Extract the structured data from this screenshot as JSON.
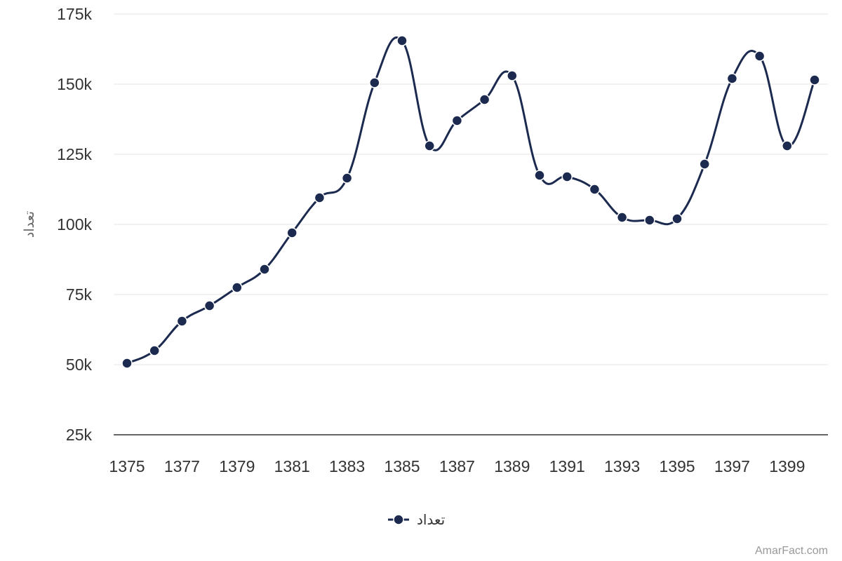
{
  "chart_data": {
    "type": "line",
    "title": "",
    "xlabel": "",
    "ylabel": "تعداد",
    "x": [
      1375,
      1376,
      1377,
      1378,
      1379,
      1380,
      1381,
      1382,
      1383,
      1384,
      1385,
      1386,
      1387,
      1388,
      1389,
      1390,
      1391,
      1392,
      1393,
      1394,
      1395,
      1396,
      1397,
      1398,
      1399,
      1400
    ],
    "x_tick_labels": [
      "1375",
      "1377",
      "1379",
      "1381",
      "1383",
      "1385",
      "1387",
      "1389",
      "1391",
      "1393",
      "1395",
      "1397",
      "1399"
    ],
    "y_tick_values": [
      25000,
      50000,
      75000,
      100000,
      125000,
      150000,
      175000
    ],
    "y_tick_labels": [
      "25k",
      "50k",
      "75k",
      "100k",
      "125k",
      "150k",
      "175k"
    ],
    "ylim": [
      25000,
      175000
    ],
    "grid": true,
    "legend_position": "bottom-center",
    "series": [
      {
        "name": "تعداد",
        "color": "#1b2a4e",
        "values": [
          50500,
          55000,
          65500,
          71000,
          77500,
          84000,
          97000,
          109500,
          116500,
          150500,
          165500,
          128000,
          137000,
          144500,
          153000,
          117500,
          117000,
          112500,
          102500,
          101500,
          102000,
          121500,
          152000,
          160000,
          128000,
          151500
        ]
      }
    ],
    "credit": "AmarFact.com"
  }
}
